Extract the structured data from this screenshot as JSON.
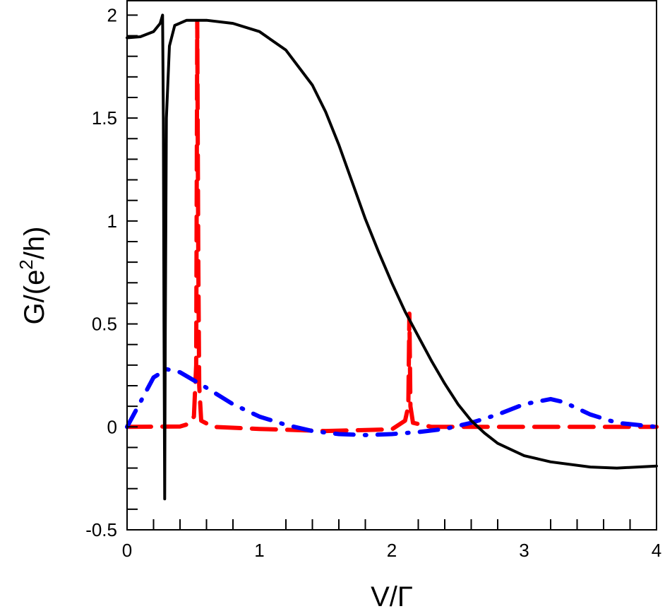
{
  "chart_data": {
    "type": "line",
    "title": "",
    "xlabel": "V/Γ",
    "ylabel_parts": [
      "G/(e",
      "2",
      "/h)"
    ],
    "xlim": [
      0,
      4
    ],
    "ylim": [
      -0.5,
      2.07
    ],
    "grid": false,
    "legend": "none",
    "x_ticks": [
      0,
      1,
      2,
      3,
      4
    ],
    "x_tick_labels": [
      "0",
      "1",
      "2",
      "3",
      "4"
    ],
    "x_minor_step": 0.2,
    "y_ticks": [
      -0.5,
      0,
      0.5,
      1,
      1.5,
      2
    ],
    "y_tick_labels": [
      "-0.5",
      "0",
      "0.5",
      "1",
      "1.5",
      "2"
    ],
    "y_minor_step": 0.1,
    "series": [
      {
        "name": "black-solid",
        "color": "#000000",
        "style": "solid",
        "points": [
          [
            0,
            1.89
          ],
          [
            0.1,
            1.895
          ],
          [
            0.2,
            1.92
          ],
          [
            0.25,
            1.96
          ],
          [
            0.268,
            2.0
          ],
          [
            0.274,
            1.5
          ],
          [
            0.279,
            0.5
          ],
          [
            0.284,
            -0.35
          ],
          [
            0.289,
            0.5
          ],
          [
            0.297,
            1.5
          ],
          [
            0.32,
            1.85
          ],
          [
            0.36,
            1.95
          ],
          [
            0.45,
            1.975
          ],
          [
            0.6,
            1.975
          ],
          [
            0.8,
            1.96
          ],
          [
            1.0,
            1.92
          ],
          [
            1.2,
            1.83
          ],
          [
            1.4,
            1.66
          ],
          [
            1.5,
            1.53
          ],
          [
            1.6,
            1.37
          ],
          [
            1.7,
            1.19
          ],
          [
            1.8,
            1.01
          ],
          [
            1.9,
            0.85
          ],
          [
            2.0,
            0.7
          ],
          [
            2.1,
            0.56
          ],
          [
            2.2,
            0.44
          ],
          [
            2.3,
            0.32
          ],
          [
            2.4,
            0.21
          ],
          [
            2.5,
            0.11
          ],
          [
            2.6,
            0.03
          ],
          [
            2.7,
            -0.03
          ],
          [
            2.8,
            -0.08
          ],
          [
            3.0,
            -0.14
          ],
          [
            3.2,
            -0.17
          ],
          [
            3.5,
            -0.195
          ],
          [
            3.7,
            -0.2
          ],
          [
            4.0,
            -0.19
          ]
        ]
      },
      {
        "name": "red-dashed",
        "color": "#ff0000",
        "style": "dashed",
        "points": [
          [
            0,
            0
          ],
          [
            0.4,
            0.002
          ],
          [
            0.47,
            0.015
          ],
          [
            0.505,
            0.05
          ],
          [
            0.522,
            0.3
          ],
          [
            0.53,
            1.97
          ],
          [
            0.538,
            0.8
          ],
          [
            0.545,
            0.2
          ],
          [
            0.56,
            0.03
          ],
          [
            0.65,
            0.0
          ],
          [
            1.0,
            -0.01
          ],
          [
            1.5,
            -0.02
          ],
          [
            2.0,
            -0.012
          ],
          [
            2.1,
            0.03
          ],
          [
            2.125,
            0.1
          ],
          [
            2.133,
            0.55
          ],
          [
            2.141,
            0.1
          ],
          [
            2.16,
            0.02
          ],
          [
            2.3,
            0.0
          ],
          [
            4,
            0
          ]
        ]
      },
      {
        "name": "blue-dashdot",
        "color": "#0000ff",
        "style": "dashdot",
        "points": [
          [
            0,
            0
          ],
          [
            0.1,
            0.12
          ],
          [
            0.2,
            0.24
          ],
          [
            0.3,
            0.28
          ],
          [
            0.4,
            0.265
          ],
          [
            0.6,
            0.19
          ],
          [
            0.8,
            0.11
          ],
          [
            1.0,
            0.05
          ],
          [
            1.2,
            0.01
          ],
          [
            1.4,
            -0.02
          ],
          [
            1.6,
            -0.035
          ],
          [
            1.8,
            -0.04
          ],
          [
            2.0,
            -0.035
          ],
          [
            2.2,
            -0.025
          ],
          [
            2.4,
            -0.01
          ],
          [
            2.6,
            0.02
          ],
          [
            2.8,
            0.06
          ],
          [
            3.0,
            0.11
          ],
          [
            3.2,
            0.135
          ],
          [
            3.3,
            0.12
          ],
          [
            3.5,
            0.06
          ],
          [
            3.7,
            0.02
          ],
          [
            4,
            0.0
          ]
        ]
      }
    ]
  }
}
